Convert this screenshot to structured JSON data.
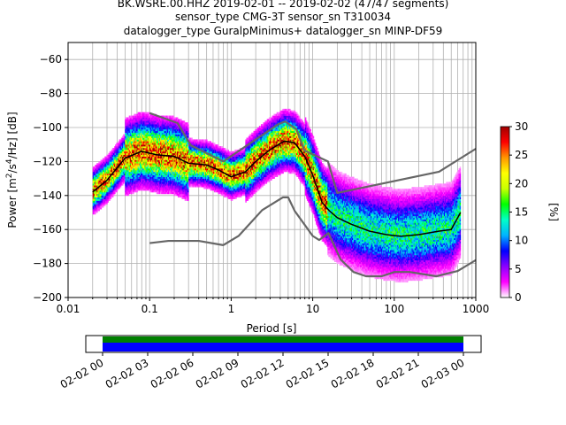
{
  "title_lines": [
    "BK.WSRE.00.HHZ   2019-02-01 -- 2019-02-02  (47/47 segments)",
    "sensor_type CMG-3T sensor_sn T310034",
    "datalogger_type GuralpMinimus+ datalogger_sn MINP-DF59"
  ],
  "chart_data": [
    {
      "type": "heatmap",
      "subtype": "probabilistic power spectral density",
      "xlabel": "Period [s]",
      "ylabel": "Power [m²/s⁴/Hz] [dB]",
      "xscale": "log",
      "xlim": [
        0.01,
        1000
      ],
      "ylim": [
        -200,
        -50
      ],
      "xticks": [
        0.01,
        0.1,
        1,
        10,
        100,
        1000
      ],
      "xtick_labels": [
        "0.01",
        "0.1",
        "1",
        "10",
        "100",
        "1000"
      ],
      "yticks": [
        -200,
        -180,
        -160,
        -140,
        -120,
        -100,
        -80,
        -60
      ],
      "grid": true,
      "colorbar": {
        "label": "[%]",
        "range": [
          0,
          30
        ],
        "ticks": [
          0,
          5,
          10,
          15,
          20,
          25,
          30
        ],
        "colormap_stops": [
          "#ffffff",
          "#ff00ff",
          "#8a00ff",
          "#0000ff",
          "#00b4ff",
          "#00ffc8",
          "#00ff00",
          "#c8ff00",
          "#ffff00",
          "#ff9600",
          "#ff0000",
          "#a00000"
        ]
      },
      "series": [
        {
          "role": "mean",
          "color": "#000000",
          "x": [
            0.02,
            0.03,
            0.05,
            0.08,
            0.12,
            0.2,
            0.3,
            0.5,
            0.7,
            1.0,
            1.5,
            2.0,
            3.0,
            4.5,
            6.0,
            8.0,
            10,
            13,
            16,
            20,
            30,
            50,
            80,
            120,
            200,
            350,
            500,
            650
          ],
          "y": [
            -138,
            -131,
            -118,
            -114,
            -116,
            -117,
            -121,
            -122,
            -125,
            -129,
            -126,
            -120,
            -113,
            -108,
            -109,
            -117,
            -128,
            -144,
            -149,
            -153,
            -157,
            -161,
            -163,
            -164,
            -163,
            -161,
            -160,
            -150
          ]
        },
        {
          "role": "NHNM",
          "color": "#666666",
          "x": [
            0.1,
            0.22,
            0.32,
            0.8,
            3.8,
            4.6,
            6.3,
            7.9,
            15.4,
            20,
            354.8,
            1000
          ],
          "y": [
            -91.5,
            -97.4,
            -110.5,
            -120,
            -98,
            -96.5,
            -101,
            -113.5,
            -120,
            -138.5,
            -126,
            -112.5
          ]
        },
        {
          "role": "NLNM",
          "color": "#666666",
          "x": [
            0.1,
            0.17,
            0.4,
            0.8,
            1.24,
            2.4,
            4.3,
            5.0,
            6.0,
            10,
            12,
            15.6,
            21.9,
            31.6,
            45,
            70,
            101,
            154,
            328,
            600,
            1000
          ],
          "y": [
            -168,
            -166.7,
            -166.7,
            -169.2,
            -163.7,
            -148.6,
            -141.1,
            -141.1,
            -149,
            -163.8,
            -166.2,
            -162.1,
            -177.5,
            -185,
            -187.5,
            -187.5,
            -185,
            -185,
            -187.5,
            -184.4,
            -178
          ]
        }
      ]
    },
    {
      "type": "bar",
      "subtype": "data availability timeline",
      "xlim": [
        "02-02 00",
        "02-03 00"
      ],
      "tick_labels": [
        "02-02 00",
        "02-02 03",
        "02-02 06",
        "02-02 09",
        "02-02 12",
        "02-02 15",
        "02-02 18",
        "02-02 21",
        "02-03 00"
      ],
      "bands": [
        {
          "role": "segments used",
          "color": "#008000",
          "start_hour": 0,
          "end_hour": 24
        },
        {
          "role": "data coverage",
          "color": "#0000ff",
          "start_hour": 0,
          "end_hour": 24
        }
      ]
    }
  ]
}
